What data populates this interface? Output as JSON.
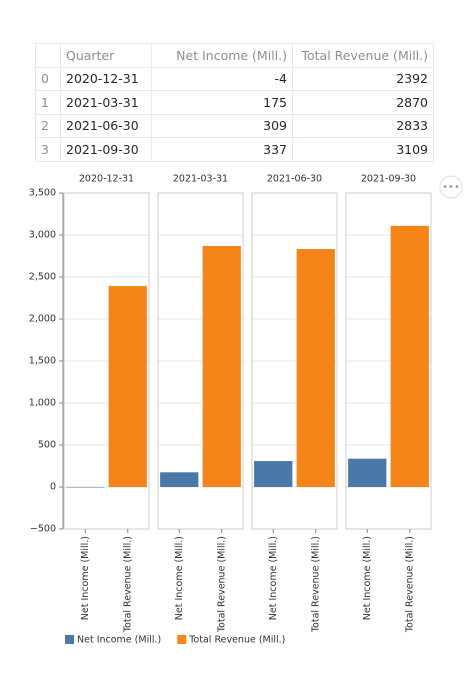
{
  "table": {
    "columns": [
      "Quarter",
      "Net Income (Mill.)",
      "Total Revenue (Mill.)"
    ],
    "rows": [
      [
        "0",
        "2020-12-31",
        -4,
        2392
      ],
      [
        "1",
        "2021-03-31",
        175,
        2870
      ],
      [
        "2",
        "2021-06-30",
        309,
        2833
      ],
      [
        "3",
        "2021-09-30",
        337,
        3109
      ]
    ]
  },
  "chart_data": {
    "type": "bar",
    "categories": [
      "2020-12-31",
      "2021-03-31",
      "2021-06-30",
      "2021-09-30"
    ],
    "series": [
      {
        "name": "Net Income (Mill.)",
        "color": "#4c78a8",
        "values": [
          -4,
          175,
          309,
          337
        ]
      },
      {
        "name": "Total Revenue (Mill.)",
        "color": "#f58518",
        "values": [
          2392,
          2870,
          2833,
          3109
        ]
      }
    ],
    "ylim": [
      -500,
      3500
    ],
    "yticks": [
      {
        "value": -500,
        "label": "−500"
      },
      0,
      500,
      {
        "value": 1000,
        "label": "1,000"
      },
      {
        "value": 1500,
        "label": "1,500"
      },
      {
        "value": 2000,
        "label": "2,000"
      },
      {
        "value": 2500,
        "label": "2,500"
      },
      {
        "value": 3000,
        "label": "3,000"
      },
      {
        "value": 3500,
        "label": "3,500"
      }
    ],
    "grid": true
  }
}
